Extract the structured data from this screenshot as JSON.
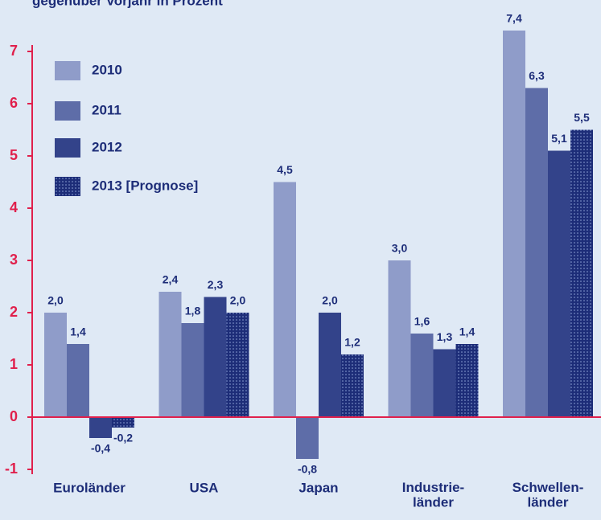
{
  "chart_data": {
    "type": "bar",
    "subtitle": "gegenüber Vorjahr in Prozent",
    "categories": [
      "Euroländer",
      "USA",
      "Japan",
      "Industrie-\nländer",
      "Schwellen-\nländer"
    ],
    "series": [
      {
        "name": "2010",
        "color": "#8f9cc9",
        "values": [
          2.0,
          2.4,
          4.5,
          3.0,
          7.4
        ],
        "value_labels": [
          "2,0",
          "2,4",
          "4,5",
          "3,0",
          "7,4"
        ]
      },
      {
        "name": "2011",
        "color": "#5e6da8",
        "values": [
          1.4,
          1.8,
          -0.8,
          1.6,
          6.3
        ],
        "value_labels": [
          "1,4",
          "1,8",
          "-0,8",
          "1,6",
          "6,3"
        ]
      },
      {
        "name": "2012",
        "color": "#33438a",
        "values": [
          -0.4,
          2.3,
          2.0,
          1.3,
          5.1
        ],
        "value_labels": [
          "-0,4",
          "2,3",
          "2,0",
          "1,3",
          "5,1"
        ]
      },
      {
        "name": "2013 [Prognose]",
        "color": "#1d2d78",
        "pattern": "dots",
        "values": [
          -0.2,
          2.0,
          1.2,
          1.4,
          5.5
        ],
        "value_labels": [
          "-0,2",
          "2,0",
          "1,2",
          "1,4",
          "5,5"
        ]
      }
    ],
    "ylim": [
      -1,
      7
    ],
    "yticks": [
      -1,
      0,
      1,
      2,
      3,
      4,
      5,
      6,
      7
    ],
    "axis_color": "#e0204c"
  }
}
